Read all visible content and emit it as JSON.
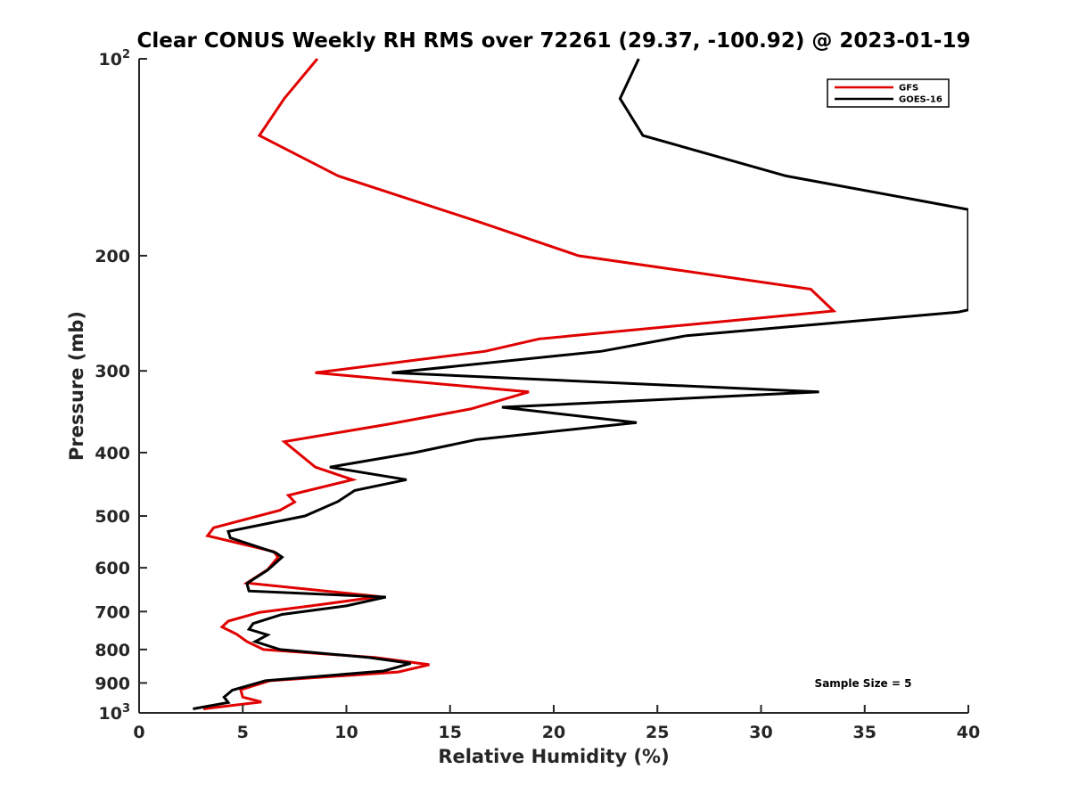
{
  "chart_data": {
    "type": "line",
    "title": "Clear CONUS Weekly RH RMS over 72261 (29.37, -100.92) @ 2023-01-19",
    "xlabel": "Relative Humidity (%)",
    "ylabel": "Pressure (mb)",
    "xlim": [
      0,
      40
    ],
    "ylim": [
      1000,
      100
    ],
    "y_scale": "log",
    "y_direction": "reversed",
    "x_ticks": [
      "0",
      "5",
      "10",
      "15",
      "20",
      "25",
      "30",
      "35",
      "40"
    ],
    "y_ticks": [
      {
        "value": 100,
        "base": "10",
        "exp": "2"
      },
      {
        "value": 200,
        "label": "200"
      },
      {
        "value": 300,
        "label": "300"
      },
      {
        "value": 400,
        "label": "400"
      },
      {
        "value": 500,
        "label": "500"
      },
      {
        "value": 600,
        "label": "600"
      },
      {
        "value": 700,
        "label": "700"
      },
      {
        "value": 800,
        "label": "800"
      },
      {
        "value": 900,
        "label": "900"
      },
      {
        "value": 1000,
        "base": "10",
        "exp": "3"
      }
    ],
    "legend_position": "top-right",
    "annotation": "Sample Size = 5",
    "series": [
      {
        "name": "GFS",
        "color": "#e00000",
        "points": [
          [
            8.6,
            100
          ],
          [
            7.0,
            115
          ],
          [
            5.8,
            131
          ],
          [
            9.6,
            151
          ],
          [
            16.5,
            178
          ],
          [
            21.2,
            200
          ],
          [
            32.4,
            225
          ],
          [
            33.5,
            243
          ],
          [
            19.3,
            268
          ],
          [
            16.7,
            280
          ],
          [
            8.5,
            302
          ],
          [
            18.8,
            323
          ],
          [
            16.0,
            343
          ],
          [
            12.0,
            362
          ],
          [
            7.0,
            385
          ],
          [
            8.5,
            421
          ],
          [
            10.3,
            440
          ],
          [
            7.2,
            465
          ],
          [
            7.5,
            476
          ],
          [
            6.8,
            490
          ],
          [
            3.6,
            521
          ],
          [
            3.3,
            536
          ],
          [
            6.5,
            567
          ],
          [
            6.7,
            578
          ],
          [
            6.2,
            604
          ],
          [
            5.2,
            633
          ],
          [
            11.6,
            664
          ],
          [
            8.3,
            686
          ],
          [
            5.8,
            702
          ],
          [
            4.3,
            724
          ],
          [
            4.0,
            739
          ],
          [
            4.7,
            758
          ],
          [
            5.2,
            778
          ],
          [
            6.0,
            800
          ],
          [
            11.4,
            823
          ],
          [
            14.0,
            844
          ],
          [
            12.5,
            866
          ],
          [
            6.3,
            893
          ],
          [
            4.9,
            922
          ],
          [
            5.0,
            946
          ],
          [
            5.9,
            962
          ],
          [
            3.1,
            986
          ]
        ]
      },
      {
        "name": "GOES-16",
        "color": "#000000",
        "points": [
          [
            24.1,
            100
          ],
          [
            23.2,
            115
          ],
          [
            24.3,
            131
          ],
          [
            31.2,
            151
          ],
          [
            40.0,
            170
          ],
          [
            40.0,
            242
          ],
          [
            39.5,
            244
          ],
          [
            26.4,
            265
          ],
          [
            22.3,
            280
          ],
          [
            12.2,
            302
          ],
          [
            32.8,
            323
          ],
          [
            17.5,
            341
          ],
          [
            24.0,
            360
          ],
          [
            16.3,
            382
          ],
          [
            13.3,
            400
          ],
          [
            9.2,
            421
          ],
          [
            12.9,
            440
          ],
          [
            10.4,
            457
          ],
          [
            9.6,
            475
          ],
          [
            8.0,
            500
          ],
          [
            4.3,
            528
          ],
          [
            4.4,
            540
          ],
          [
            6.6,
            569
          ],
          [
            6.9,
            578
          ],
          [
            6.2,
            605
          ],
          [
            5.2,
            634
          ],
          [
            5.3,
            651
          ],
          [
            11.9,
            665
          ],
          [
            10.0,
            686
          ],
          [
            6.9,
            707
          ],
          [
            5.5,
            730
          ],
          [
            5.3,
            745
          ],
          [
            6.2,
            760
          ],
          [
            5.6,
            778
          ],
          [
            6.8,
            800
          ],
          [
            11.1,
            823
          ],
          [
            13.1,
            840
          ],
          [
            11.8,
            863
          ],
          [
            6.1,
            893
          ],
          [
            4.5,
            923
          ],
          [
            4.1,
            946
          ],
          [
            4.3,
            964
          ],
          [
            2.6,
            986
          ]
        ]
      }
    ]
  }
}
